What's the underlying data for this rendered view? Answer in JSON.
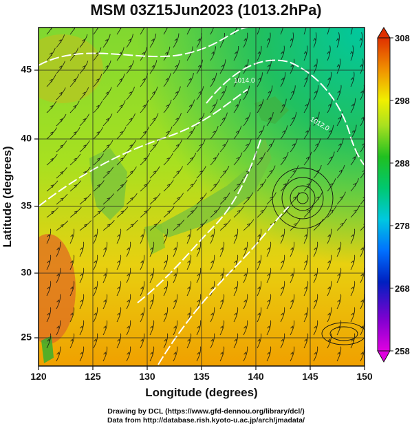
{
  "title": "MSM 03Z15Jun2023 (1013.2hPa)",
  "xaxis": {
    "label": "Longitude (degrees)",
    "ticks": [
      "120",
      "125",
      "130",
      "135",
      "140",
      "145",
      "150"
    ],
    "range": [
      120,
      150
    ]
  },
  "yaxis": {
    "label": "Latitude (degrees)",
    "ticks": [
      "25",
      "30",
      "35",
      "40",
      "45"
    ],
    "range": [
      22.4,
      47.6
    ]
  },
  "colorbar": {
    "ticks": [
      "308",
      "298",
      "288",
      "278",
      "268",
      "258"
    ],
    "range": [
      258,
      308
    ],
    "colors": [
      "#e000e0",
      "#2000c0",
      "#0040ff",
      "#00c0e0",
      "#00d090",
      "#10c020",
      "#a0e020",
      "#f0f000",
      "#f0a000",
      "#e04000"
    ]
  },
  "isobars": [
    {
      "label": "1014.0"
    },
    {
      "label": "1012.0"
    }
  ],
  "credits": {
    "line1": "Drawing by DCL (https://www.gfd-dennou.org/library/dcl/)",
    "line2": "Data from http://database.rish.kyoto-u.ac.jp/arch/jmadata/"
  }
}
